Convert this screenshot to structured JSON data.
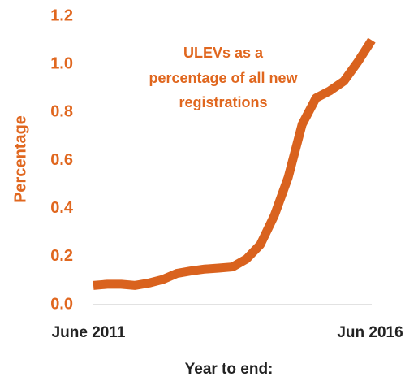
{
  "chart_data": {
    "type": "line",
    "annotation": [
      "ULEVs as a",
      "percentage of all new",
      "registrations"
    ],
    "y_label": "Percentage",
    "x_label": "Year to end:",
    "categories": [
      "June 2011",
      null,
      null,
      null,
      null,
      null,
      null,
      null,
      null,
      null,
      null,
      null,
      null,
      null,
      null,
      null,
      null,
      null,
      null,
      null,
      "Jun 2016"
    ],
    "values": [
      0.08,
      0.085,
      0.085,
      0.08,
      0.09,
      0.105,
      0.13,
      0.14,
      0.148,
      0.152,
      0.157,
      0.19,
      0.25,
      0.37,
      0.53,
      0.75,
      0.86,
      0.89,
      0.93,
      1.01,
      1.1
    ],
    "color": "#d9621e",
    "ylim": [
      0,
      1.2
    ],
    "yticks": [
      {
        "value": 0,
        "label": "0.0"
      },
      0.2,
      0.4,
      0.6,
      0.8,
      {
        "value": 1,
        "label": "1.0"
      },
      1.2
    ],
    "grid": false
  }
}
